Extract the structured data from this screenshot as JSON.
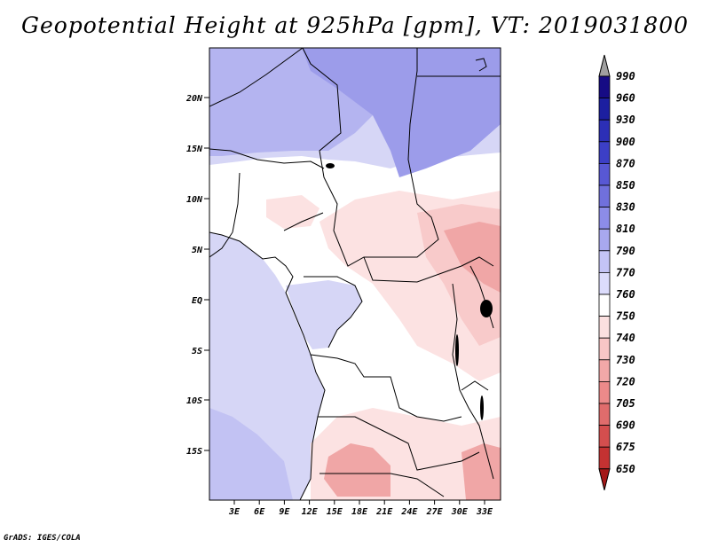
{
  "title": "Geopotential Height at 925hPa [gpm], VT: 2019031800",
  "credit": "GrADS: IGES/COLA",
  "map": {
    "lat_labels": [
      "20N",
      "15N",
      "10N",
      "5N",
      "EQ",
      "5S",
      "10S",
      "15S"
    ],
    "lon_labels": [
      "3E",
      "6E",
      "9E",
      "12E",
      "15E",
      "18E",
      "21E",
      "24E",
      "27E",
      "30E",
      "33E"
    ],
    "lon_range": [
      0,
      35
    ],
    "lat_range": [
      -20,
      24
    ]
  },
  "colorbar": {
    "levels": [
      "990",
      "960",
      "930",
      "900",
      "870",
      "850",
      "830",
      "810",
      "790",
      "770",
      "760",
      "750",
      "740",
      "730",
      "720",
      "705",
      "690",
      "675",
      "650"
    ],
    "colors": [
      "#160b84",
      "#1c1fa0",
      "#2c2fb6",
      "#3c3fc6",
      "#5858d4",
      "#7070dc",
      "#8c8ce8",
      "#a8a8ee",
      "#c4c4f6",
      "#dcdcfc",
      "#ffffff",
      "#fbe0e0",
      "#f8c6c6",
      "#f2a8a8",
      "#ec8a8a",
      "#e06c6c",
      "#d44e4e",
      "#c43232",
      "#a41818"
    ],
    "top_arrow_color": "#a0a0a0"
  },
  "fields": {
    "ocean_color": "#d6d6f6",
    "sw_ocean_color": "#c2c2f3",
    "north_color": "#b4b4f0",
    "northeast_color": "#9c9cea",
    "land_color": "#ffffff",
    "pink_light": "#fce2e2",
    "pink_mid": "#f8caca",
    "pink_dark": "#f0a6a6"
  }
}
